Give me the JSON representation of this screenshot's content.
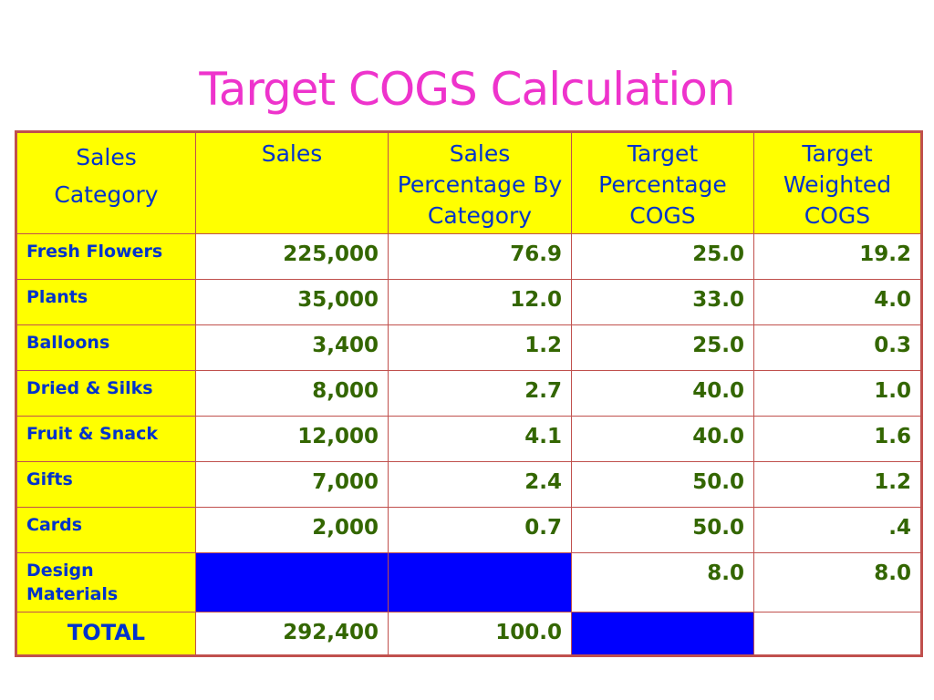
{
  "title": "Target COGS Calculation",
  "headers": {
    "category": [
      "Sales",
      "Category"
    ],
    "sales": [
      "Sales"
    ],
    "sales_pct": [
      "Sales",
      "Percentage By",
      "Category"
    ],
    "target_pct": [
      "Target",
      "Percentage",
      "COGS"
    ],
    "weighted": [
      "Target",
      "Weighted",
      "COGS"
    ]
  },
  "rows": [
    {
      "category": "Fresh Flowers",
      "sales": "225,000",
      "sales_pct": "76.9",
      "target_pct": "25.0",
      "weighted": "19.2"
    },
    {
      "category": "Plants",
      "sales": "35,000",
      "sales_pct": "12.0",
      "target_pct": "33.0",
      "weighted": "4.0"
    },
    {
      "category": "Balloons",
      "sales": "3,400",
      "sales_pct": "1.2",
      "target_pct": "25.0",
      "weighted": "0.3"
    },
    {
      "category": "Dried & Silks",
      "sales": "8,000",
      "sales_pct": "2.7",
      "target_pct": "40.0",
      "weighted": "1.0"
    },
    {
      "category": "Fruit & Snack",
      "sales": "12,000",
      "sales_pct": "4.1",
      "target_pct": "40.0",
      "weighted": "1.6"
    },
    {
      "category": "Gifts",
      "sales": "7,000",
      "sales_pct": "2.4",
      "target_pct": "50.0",
      "weighted": "1.2"
    },
    {
      "category": "Cards",
      "sales": "2,000",
      "sales_pct": "0.7",
      "target_pct": "50.0",
      "weighted": ".4"
    }
  ],
  "design_row": {
    "category_lines": [
      "Design",
      "Materials"
    ],
    "target_pct": "8.0",
    "weighted": "8.0"
  },
  "total_row": {
    "label": "TOTAL",
    "sales": "292,400",
    "sales_pct": "100.0"
  },
  "colors": {
    "title": "#ee33cc",
    "header_bg": "#ffff00",
    "header_text": "#0033cc",
    "number_text": "#336600",
    "border": "#c0504d",
    "blue_fill": "#0000ff"
  }
}
